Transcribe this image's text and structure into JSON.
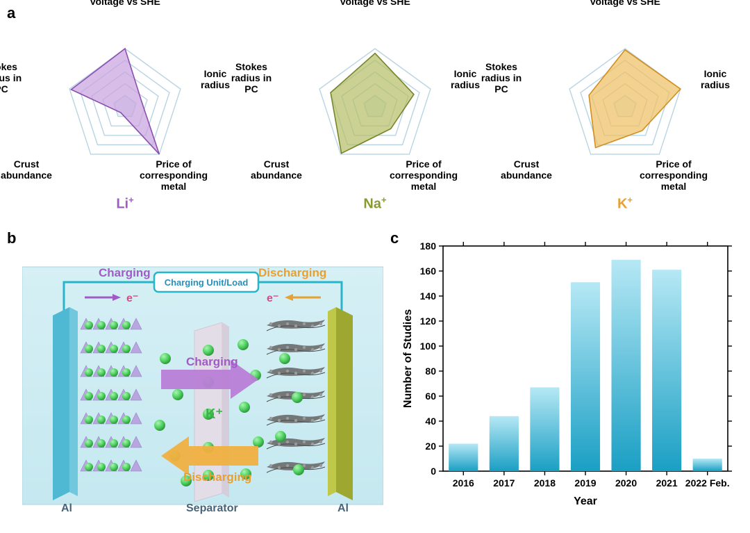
{
  "labels": {
    "a": "a",
    "b": "b",
    "c": "c"
  },
  "radar": {
    "axes": [
      "Voltage vs SHE",
      "Ionic\nradius",
      "Price of\ncorresponding\nmetal",
      "Crust\nabundance",
      "Stokes\nradius in\nPC"
    ],
    "rings": 5,
    "ring_stroke": "#b8d4e3",
    "ring_fill_inner": "#e8f2f8",
    "charts": [
      {
        "title": "Li",
        "title_color": "#a05cc6",
        "fill": "#c9a4e0",
        "stroke": "#8a4fb0",
        "fill_opacity": 0.72,
        "values": [
          1.0,
          0.3,
          1.0,
          0.12,
          0.97
        ]
      },
      {
        "title": "Na",
        "title_color": "#8a9a2e",
        "fill": "#b5bf6a",
        "stroke": "#76842a",
        "fill_opacity": 0.72,
        "values": [
          0.92,
          0.7,
          0.46,
          0.98,
          0.8
        ]
      },
      {
        "title": "K",
        "title_color": "#e8a030",
        "fill": "#efc065",
        "stroke": "#d08f20",
        "fill_opacity": 0.72,
        "values": [
          0.98,
          1.0,
          0.5,
          0.86,
          0.65
        ]
      }
    ],
    "axis_label_fontsize": 14,
    "title_fontsize": 20
  },
  "panel_b": {
    "bg_gradient": [
      "#d6f0f5",
      "#c5e8f0"
    ],
    "circuit_color": "#27b6c9",
    "label_charging": "Charging",
    "label_discharging": "Discharging",
    "label_charging_color": "#a05cc6",
    "label_discharging_color": "#e8a030",
    "label_charging_unit": "Charging Unit/Load",
    "label_charging_unit_color": "#2a8eb8",
    "label_e": "e⁻",
    "label_e_color": "#d24d8a",
    "ion_label": "K⁺",
    "ion_label_color": "#3bb24a",
    "cathode_label": "Al",
    "anode_label": "Al",
    "electrode_label_color": "#47647a",
    "separator_label": "Separator",
    "separator_label_color": "#47647a",
    "cathode_body_colors": [
      "#6fc8de",
      "#4fb8d2"
    ],
    "anode_body_colors": [
      "#c0c84a",
      "#9ea830"
    ],
    "cathode_layer_color": "#b9a6e0",
    "separator_color": "#e6dce6",
    "ion_color": "#4fd060",
    "ion_shadow": "#2e9a3c",
    "arrow_charge_color": "#b87ed6",
    "arrow_discharge_color": "#f0b040",
    "carbon_color": "#6a6a6a"
  },
  "bar_chart": {
    "type": "bar",
    "categories": [
      "2016",
      "2017",
      "2018",
      "2019",
      "2020",
      "2021",
      "2022 Feb."
    ],
    "values": [
      22,
      44,
      67,
      151,
      169,
      161,
      10
    ],
    "bar_gradient": [
      "#b6e8f5",
      "#1a9fc4"
    ],
    "xlabel": "Year",
    "ylabel": "Number of Studies",
    "ylim": [
      0,
      180
    ],
    "ytick_step": 20,
    "axis_color": "#000000",
    "label_fontsize": 16,
    "tick_fontsize": 14,
    "bar_width_ratio": 0.72
  }
}
